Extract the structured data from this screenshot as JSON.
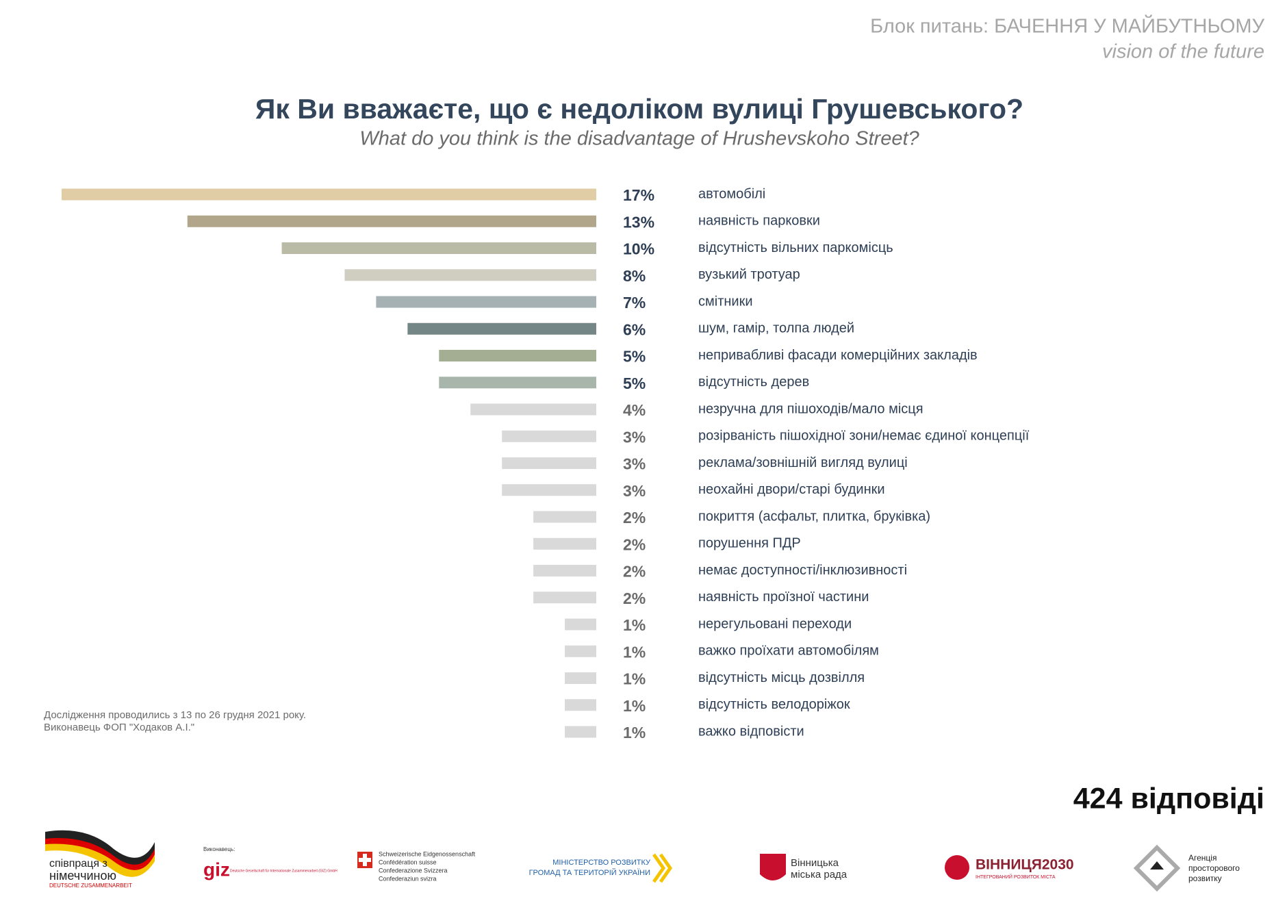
{
  "header": {
    "title": "Блок питань: БАЧЕННЯ У МАЙБУТНЬОМУ",
    "subtitle": "vision of the future"
  },
  "chart_data": {
    "type": "bar",
    "orientation": "horizontal",
    "title": "Як Ви вважаєте, що є недоліком вулиці Грушевського?",
    "subtitle": "What do you think is the disadvantage of Hrushevskoho Street?",
    "categories": [
      "автомобілі",
      "наявність парковки",
      "відсутність вільних паркомісць",
      "вузький тротуар",
      "смітники",
      "шум, гамір, толпа людей",
      "непривабливі фасади комерційних закладів",
      "відсутність дерев",
      "незручна для пішоходів/мало місця",
      "розірваність пішохідної зони/немає єдиної концепції",
      "реклама/зовнішній вигляд вулиці",
      "неохайні двори/старі будинки",
      "покриття (асфальт, плитка, бруківка)",
      "порушення ПДР",
      "немає доступності/інклюзивності",
      "наявність проїзної частини",
      "нерегульовані переходи",
      "важко проїхати автомобілям",
      "відсутність місць дозвілля",
      "відсутність велодоріжок",
      "важко відповісти"
    ],
    "values": [
      17,
      13,
      10,
      8,
      7,
      6,
      5,
      5,
      4,
      3,
      3,
      3,
      2,
      2,
      2,
      2,
      1,
      1,
      1,
      1,
      1
    ],
    "value_labels": [
      "17%",
      "13%",
      "10%",
      "8%",
      "7%",
      "6%",
      "5%",
      "5%",
      "4%",
      "3%",
      "3%",
      "3%",
      "2%",
      "2%",
      "2%",
      "2%",
      "1%",
      "1%",
      "1%",
      "1%",
      "1%"
    ],
    "colors": [
      "#e0cda6",
      "#b2a68a",
      "#b9bba7",
      "#d0cec0",
      "#a5b1b3",
      "#748786",
      "#a3ae93",
      "#a8b5ab",
      "#d9d9d9",
      "#d9d9d9",
      "#d9d9d9",
      "#d9d9d9",
      "#d9d9d9",
      "#d9d9d9",
      "#d9d9d9",
      "#d9d9d9",
      "#d9d9d9",
      "#d9d9d9",
      "#d9d9d9",
      "#d9d9d9",
      "#d9d9d9"
    ],
    "xlim": [
      0,
      17
    ]
  },
  "notes": [
    "Дослідження проводились з 13 по 26 грудня 2021 року.",
    "Виконавець ФОП \"Ходаков А.І.\""
  ],
  "responses": "424 відповіді",
  "logos": {
    "coop": [
      "співпраця з",
      "німеччиною",
      "DEUTSCHE ZUSAMMENARBEIT"
    ],
    "giz": [
      "Виконавець:",
      "giz",
      "Deutsche Gesellschaft für Internationale Zusammenarbeit (GIZ) GmbH"
    ],
    "swiss": [
      "Schweizerische Eidgenossenschaft",
      "Confédération suisse",
      "Confederazione Svizzera",
      "Confederaziun svizra"
    ],
    "ministry": [
      "МІНІСТЕРСТВО РОЗВИТКУ",
      "ГРОМАД ТА ТЕРИТОРІЙ УКРАЇНИ"
    ],
    "city": [
      "Вінницька",
      "міська рада"
    ],
    "vin2030": [
      "ВІННИЦЯ2030",
      "ІНТЕГРОВАНИЙ РОЗВИТОК МІСТА"
    ],
    "agency": [
      "Агенція",
      "просторового",
      "розвитку"
    ]
  }
}
